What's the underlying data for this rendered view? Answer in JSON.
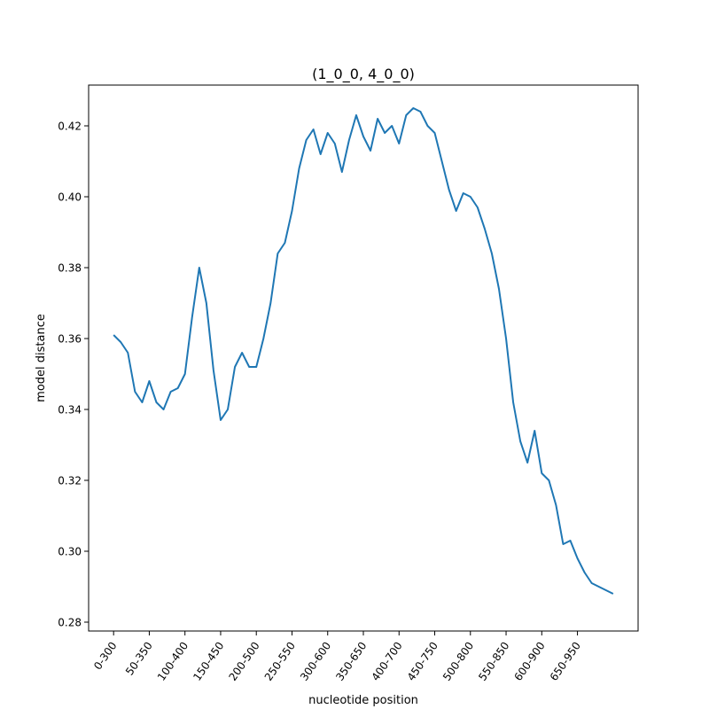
{
  "chart_data": {
    "type": "line",
    "title": "(1_0_0, 4_0_0)",
    "xlabel": "nucleotide position",
    "ylabel": "model distance",
    "x_tick_labels": [
      "0-300",
      "50-350",
      "100-400",
      "150-450",
      "200-500",
      "250-550",
      "300-600",
      "350-650",
      "400-700",
      "450-750",
      "500-800",
      "550-850",
      "600-900",
      "650-950"
    ],
    "y_ticks": [
      0.28,
      0.3,
      0.32,
      0.34,
      0.36,
      0.38,
      0.4,
      0.42
    ],
    "y_tick_labels": [
      "0.28",
      "0.30",
      "0.32",
      "0.34",
      "0.36",
      "0.38",
      "0.40",
      "0.42"
    ],
    "xlim": [
      -3.5,
      73.5
    ],
    "ylim": [
      0.2775,
      0.4315
    ],
    "grid": false,
    "line_color": "#1f77b4",
    "series": [
      {
        "x": [
          0,
          1,
          2,
          3,
          4,
          5,
          6,
          7,
          8,
          9,
          10,
          11,
          12,
          13,
          14,
          15,
          16,
          17,
          18,
          19,
          20,
          21,
          22,
          23,
          24,
          25,
          26,
          27,
          28,
          29,
          30,
          31,
          32,
          33,
          34,
          35,
          36,
          37,
          38,
          39,
          40,
          41,
          42,
          43,
          44,
          45,
          46,
          47,
          48,
          49,
          50,
          51,
          52,
          53,
          54,
          55,
          56,
          57,
          58,
          59,
          60,
          61,
          62,
          63,
          64,
          65,
          66,
          67,
          68,
          69,
          70
        ],
        "values": [
          0.361,
          0.359,
          0.356,
          0.345,
          0.342,
          0.348,
          0.342,
          0.34,
          0.345,
          0.346,
          0.35,
          0.366,
          0.38,
          0.37,
          0.351,
          0.337,
          0.34,
          0.352,
          0.356,
          0.352,
          0.352,
          0.36,
          0.37,
          0.384,
          0.387,
          0.396,
          0.408,
          0.416,
          0.419,
          0.412,
          0.418,
          0.415,
          0.407,
          0.416,
          0.423,
          0.417,
          0.413,
          0.422,
          0.418,
          0.42,
          0.415,
          0.423,
          0.425,
          0.424,
          0.42,
          0.418,
          0.41,
          0.402,
          0.396,
          0.401,
          0.4,
          0.397,
          0.391,
          0.384,
          0.374,
          0.36,
          0.342,
          0.331,
          0.325,
          0.334,
          0.322,
          0.32,
          0.313,
          0.302,
          0.303,
          0.298,
          0.294,
          0.291,
          0.29,
          0.289,
          0.288
        ]
      }
    ]
  }
}
